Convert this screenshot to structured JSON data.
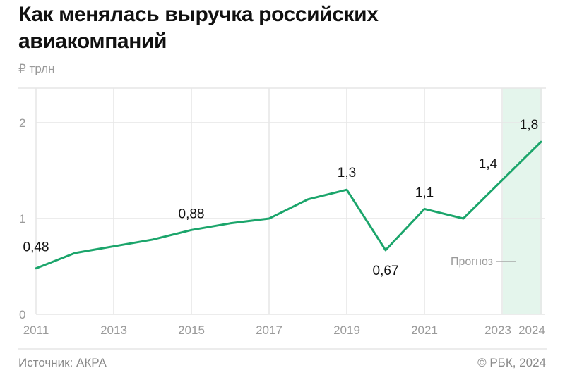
{
  "header": {
    "title": "Как менялась выручка российских авиакомпаний",
    "unit": "₽ трлн"
  },
  "footer": {
    "source": "Источник: АКРА",
    "copyright": "© РБК, 2024"
  },
  "forecast_label": "Прогноз",
  "colors": {
    "line": "#1ba56b",
    "forecast_band": "#e4f5ec",
    "grid": "#e6e6e6",
    "tick_text": "#9a9a9a",
    "label_text": "#111111"
  },
  "chart_data": {
    "type": "line",
    "title": "Как менялась выручка российских авиакомпаний",
    "ylabel": "₽ трлн",
    "xlabel": "",
    "x": [
      2011,
      2012,
      2013,
      2014,
      2015,
      2016,
      2017,
      2018,
      2019,
      2020,
      2021,
      2022,
      2023,
      2024
    ],
    "series": [
      {
        "name": "Выручка",
        "values": [
          0.48,
          0.64,
          0.71,
          0.78,
          0.88,
          0.95,
          1.0,
          1.2,
          1.3,
          0.67,
          1.1,
          1.0,
          1.4,
          1.8
        ]
      }
    ],
    "data_labels": [
      {
        "year": 2011,
        "text": "0,48"
      },
      {
        "year": 2015,
        "text": "0,88"
      },
      {
        "year": 2019,
        "text": "1,3"
      },
      {
        "year": 2020,
        "text": "0,67"
      },
      {
        "year": 2021,
        "text": "1,1"
      },
      {
        "year": 2023,
        "text": "1,4"
      },
      {
        "year": 2024,
        "text": "1,8"
      }
    ],
    "x_tick_labels": [
      "2011",
      "2013",
      "2015",
      "2017",
      "2019",
      "2021",
      "2023",
      "2024"
    ],
    "y_tick_labels": [
      "0",
      "1",
      "2"
    ],
    "ylim": [
      0,
      2.35
    ],
    "grid": true,
    "forecast_range": [
      2023,
      2024
    ],
    "annotation": "Прогноз"
  }
}
